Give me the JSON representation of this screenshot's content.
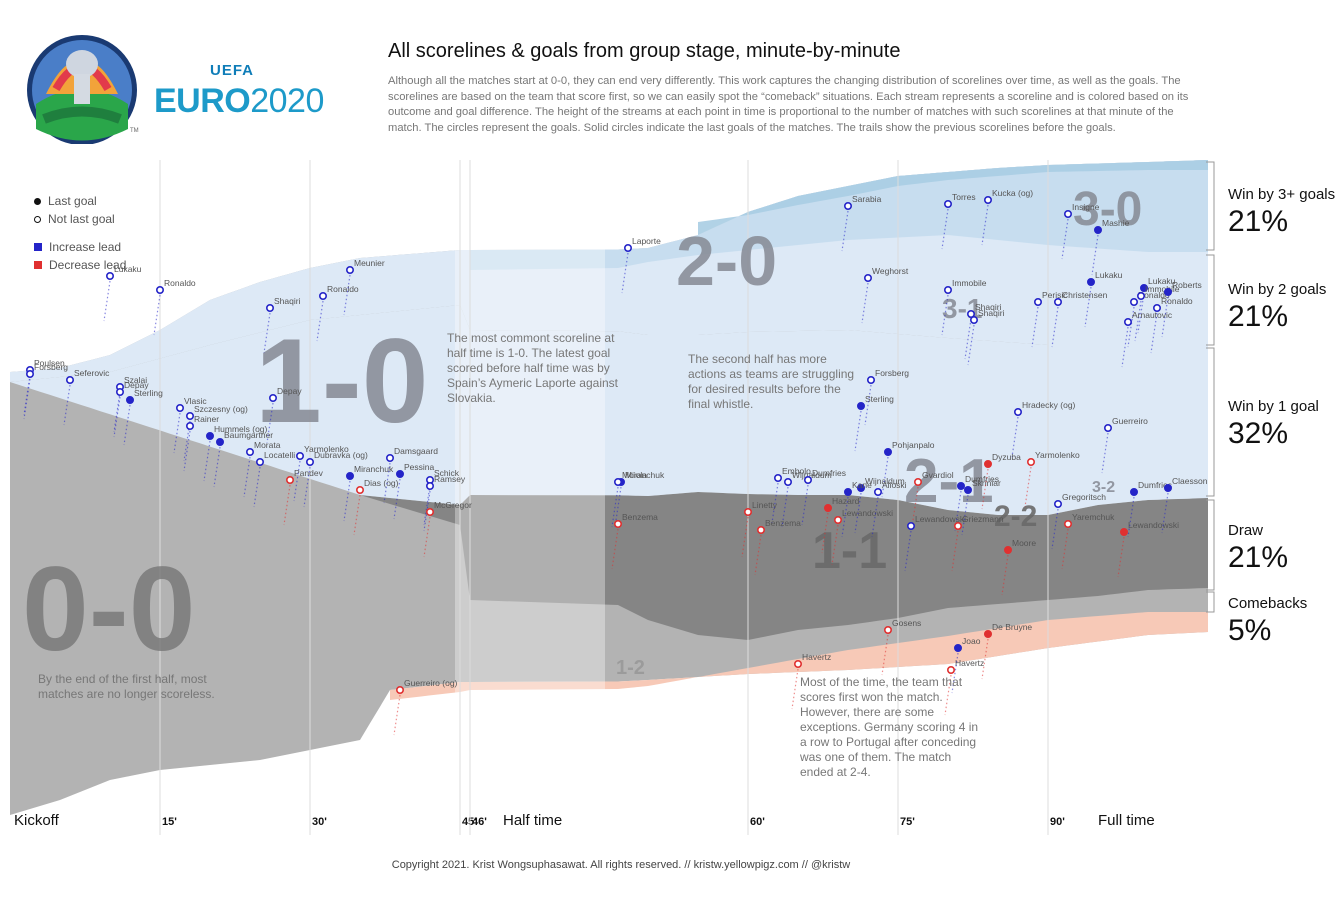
{
  "title": "All scorelines & goals from group stage, minute-by-minute",
  "description": "Although all the matches start at 0-0, they can end very differently. This work captures the changing distribution of scorelines over time, as well as the goals. The scorelines are based on the team that score first, so we can easily spot the “comeback” situations. Each stream represents a scoreline and is colored based on its outcome and goal difference. The height of the streams at each point in time is proportional to the number of matches with such scorelines at that minute of the match. The circles represent the goals. Solid circles indicate the last goals of the matches. The trails show the previous scorelines before the goals.",
  "logo": {
    "top": "UEFA",
    "name_a": "EURO",
    "name_b": "2020",
    "tm": "TM"
  },
  "legend": {
    "last_goal": "Last goal",
    "not_last_goal": "Not last goal",
    "increase_lead": "Increase lead",
    "decrease_lead": "Decrease lead"
  },
  "colors": {
    "increase": "#2424c8",
    "decrease": "#e03030",
    "draw_dark": "#7c7c7c",
    "zero": "#b3b3b3",
    "win1": "#dde9f6",
    "win2": "#c4dcee",
    "win3": "#a8cde3",
    "comeback": "#f7c9b7"
  },
  "annotations": {
    "first_half": "By the end of the first half, most matches are no longer scoreless.",
    "half_time": "The most commont scoreline at half time is 1-0. The latest goal scored before half time was by Spain’s Aymeric Laporte against Slovakia.",
    "second_half": "The second half has more actions as teams are struggling for desired results before the final whistle.",
    "comeback": "Most of the time, the team that scores first won the match. However, there are some exceptions. Germany scoring 4 in a row to Portugal after conceding was one of them. The match ended at 2-4."
  },
  "categories": [
    {
      "label": "Win by 3+ goals",
      "pct": "21%"
    },
    {
      "label": "Win by 2 goals",
      "pct": "21%"
    },
    {
      "label": "Win by 1 goal",
      "pct": "32%"
    },
    {
      "label": "Draw",
      "pct": "21%"
    },
    {
      "label": "Comebacks",
      "pct": "5%"
    }
  ],
  "axis": {
    "kickoff": "Kickoff",
    "half_time": "Half time",
    "full_time": "Full time"
  },
  "footer": "Copyright 2021. Krist Wongsuphasawat. All rights reserved.  // kristw.yellowpigz.com // @kristw",
  "chart_data": {
    "type": "area",
    "title": "All scorelines & goals from group stage, minute-by-minute",
    "x_label": "",
    "y_label": "",
    "x_ticks": [
      "15'",
      "30'",
      "45'",
      "46'",
      "60'",
      "75'",
      "90'"
    ],
    "scoreline_labels": [
      "0-0",
      "1-0",
      "2-0",
      "3-0",
      "1-1",
      "2-1",
      "3-1",
      "2-2",
      "3-2",
      "1-2"
    ],
    "outcome_shares": [
      {
        "name": "Win by 3+ goals",
        "value": 21
      },
      {
        "name": "Win by 2 goals",
        "value": 21
      },
      {
        "name": "Win by 1 goal",
        "value": 32
      },
      {
        "name": "Draw",
        "value": 21
      },
      {
        "name": "Comebacks",
        "value": 5
      }
    ],
    "goals": [
      {
        "player": "Poulsen",
        "minute": 2,
        "type": "increase",
        "last": false
      },
      {
        "player": "Forsberg",
        "minute": 2,
        "type": "increase",
        "last": false
      },
      {
        "player": "Seferovic",
        "minute": 6,
        "type": "increase",
        "last": false
      },
      {
        "player": "Lukaku",
        "minute": 10,
        "type": "increase",
        "last": false
      },
      {
        "player": "Szalai",
        "minute": 11,
        "type": "increase",
        "last": false
      },
      {
        "player": "Depay",
        "minute": 11,
        "type": "increase",
        "last": false
      },
      {
        "player": "Sterling",
        "minute": 12,
        "type": "increase",
        "last": true
      },
      {
        "player": "Ronaldo",
        "minute": 15,
        "type": "increase",
        "last": false
      },
      {
        "player": "Vlasic",
        "minute": 17,
        "type": "increase",
        "last": false
      },
      {
        "player": "Szczesny (og)",
        "minute": 18,
        "type": "increase",
        "last": false
      },
      {
        "player": "Rainer",
        "minute": 18,
        "type": "increase",
        "last": false
      },
      {
        "player": "Hummels (og)",
        "minute": 20,
        "type": "increase",
        "last": true
      },
      {
        "player": "Baumgartner",
        "minute": 21,
        "type": "increase",
        "last": true
      },
      {
        "player": "Morata",
        "minute": 24,
        "type": "increase",
        "last": false
      },
      {
        "player": "Locatelli",
        "minute": 25,
        "type": "increase",
        "last": false
      },
      {
        "player": "Depay",
        "minute": 26,
        "type": "increase",
        "last": false
      },
      {
        "player": "Pandev",
        "minute": 28,
        "type": "decrease",
        "last": false
      },
      {
        "player": "Yarmolenko",
        "minute": 29,
        "type": "increase",
        "last": false
      },
      {
        "player": "Dubravka (og)",
        "minute": 30,
        "type": "increase",
        "last": false
      },
      {
        "player": "Ronaldo",
        "minute": 31,
        "type": "increase",
        "last": false
      },
      {
        "player": "Shaqiri",
        "minute": 26,
        "type": "increase",
        "last": false
      },
      {
        "player": "Meunier",
        "minute": 34,
        "type": "increase",
        "last": false
      },
      {
        "player": "Miranchuk",
        "minute": 34,
        "type": "increase",
        "last": true
      },
      {
        "player": "Dias (og)",
        "minute": 35,
        "type": "decrease",
        "last": false
      },
      {
        "player": "Damsgaard",
        "minute": 38,
        "type": "increase",
        "last": false
      },
      {
        "player": "Guerreiro (og)",
        "minute": 39,
        "type": "decrease",
        "last": false
      },
      {
        "player": "Pessina",
        "minute": 39,
        "type": "increase",
        "last": true
      },
      {
        "player": "Schick",
        "minute": 42,
        "type": "increase",
        "last": false
      },
      {
        "player": "Ramsey",
        "minute": 42,
        "type": "increase",
        "last": false
      },
      {
        "player": "McGregor",
        "minute": 42,
        "type": "decrease",
        "last": false
      },
      {
        "player": "Laporte",
        "minute": 48,
        "type": "increase",
        "last": false
      },
      {
        "player": "Miranchuk",
        "minute": 47,
        "type": "increase",
        "last": true
      },
      {
        "player": "Moiola",
        "minute": 47,
        "type": "increase",
        "last": false
      },
      {
        "player": "Benzema",
        "minute": 47,
        "type": "decrease",
        "last": false
      },
      {
        "player": "Linetty",
        "minute": 60,
        "type": "decrease",
        "last": false
      },
      {
        "player": "Benzema",
        "minute": 61,
        "type": "decrease",
        "last": false
      },
      {
        "player": "Embolo",
        "minute": 63,
        "type": "increase",
        "last": false
      },
      {
        "player": "Wijnaldum",
        "minute": 64,
        "type": "increase",
        "last": false
      },
      {
        "player": "Dumfries",
        "minute": 66,
        "type": "increase",
        "last": false
      },
      {
        "player": "Havertz",
        "minute": 65,
        "type": "decrease",
        "last": false
      },
      {
        "player": "Hazard",
        "minute": 68,
        "type": "decrease",
        "last": true
      },
      {
        "player": "Lewandowski",
        "minute": 69,
        "type": "decrease",
        "last": false
      },
      {
        "player": "Sarabia",
        "minute": 70,
        "type": "increase",
        "last": false
      },
      {
        "player": "Wijnaldum",
        "minute": 71,
        "type": "increase",
        "last": true
      },
      {
        "player": "Kane",
        "minute": 70,
        "type": "increase",
        "last": true
      },
      {
        "player": "Sterling",
        "minute": 71,
        "type": "increase",
        "last": true
      },
      {
        "player": "Weghorst",
        "minute": 72,
        "type": "increase",
        "last": false
      },
      {
        "player": "Forsberg",
        "minute": 72,
        "type": "increase",
        "last": false
      },
      {
        "player": "Pohjanpalo",
        "minute": 74,
        "type": "increase",
        "last": true
      },
      {
        "player": "Alioski",
        "minute": 73,
        "type": "increase",
        "last": false
      },
      {
        "player": "Gosens",
        "minute": 74,
        "type": "decrease",
        "last": false
      },
      {
        "player": "Gvardiol",
        "minute": 77,
        "type": "decrease",
        "last": false
      },
      {
        "player": "Lewandowski",
        "minute": 76,
        "type": "increase",
        "last": false
      },
      {
        "player": "Torres",
        "minute": 80,
        "type": "increase",
        "last": false
      },
      {
        "player": "Immobile",
        "minute": 80,
        "type": "increase",
        "last": false
      },
      {
        "player": "Dumfries",
        "minute": 81,
        "type": "increase",
        "last": true
      },
      {
        "player": "Shaqiri",
        "minute": 82,
        "type": "increase",
        "last": false
      },
      {
        "player": "Kucka (og)",
        "minute": 84,
        "type": "increase",
        "last": false
      },
      {
        "player": "Havertz",
        "minute": 80,
        "type": "decrease",
        "last": false
      },
      {
        "player": "Griezmann",
        "minute": 81,
        "type": "decrease",
        "last": false
      },
      {
        "player": "Joao",
        "minute": 81,
        "type": "increase",
        "last": true
      },
      {
        "player": "Shaqiri",
        "minute": 82,
        "type": "increase",
        "last": false
      },
      {
        "player": "Skriniar",
        "minute": 82,
        "type": "increase",
        "last": true
      },
      {
        "player": "Dyzuba",
        "minute": 84,
        "type": "decrease",
        "last": true
      },
      {
        "player": "De Bruyne",
        "minute": 84,
        "type": "decrease",
        "last": true
      },
      {
        "player": "Moore",
        "minute": 86,
        "type": "decrease",
        "last": true
      },
      {
        "player": "Hradecky (og)",
        "minute": 87,
        "type": "increase",
        "last": false
      },
      {
        "player": "Yarmolenko",
        "minute": 88,
        "type": "decrease",
        "last": false
      },
      {
        "player": "Perisic",
        "minute": 89,
        "type": "increase",
        "last": false
      },
      {
        "player": "Christensen",
        "minute": 91,
        "type": "increase",
        "last": false
      },
      {
        "player": "Insigne",
        "minute": 92,
        "type": "increase",
        "last": false
      },
      {
        "player": "Gregoritsch",
        "minute": 91,
        "type": "increase",
        "last": false
      },
      {
        "player": "Yaremchuk",
        "minute": 92,
        "type": "decrease",
        "last": false
      },
      {
        "player": "Lukaku",
        "minute": 94,
        "type": "increase",
        "last": true
      },
      {
        "player": "Mashie",
        "minute": 95,
        "type": "increase",
        "last": true
      },
      {
        "player": "Guerreiro",
        "minute": 96,
        "type": "increase",
        "last": false
      },
      {
        "player": "Lewandowski",
        "minute": 97,
        "type": "decrease",
        "last": true
      },
      {
        "player": "Dumfries",
        "minute": 98,
        "type": "increase",
        "last": true
      },
      {
        "player": "Ronaldo",
        "minute": 98,
        "type": "increase",
        "last": false
      },
      {
        "player": "Lukaku",
        "minute": 99,
        "type": "increase",
        "last": true
      },
      {
        "player": "Immobile",
        "minute": 99,
        "type": "increase",
        "last": false
      },
      {
        "player": "Arnautovic",
        "minute": 98,
        "type": "increase",
        "last": false
      },
      {
        "player": "Ronaldo",
        "minute": 100,
        "type": "increase",
        "last": false
      },
      {
        "player": "Roberts",
        "minute": 102,
        "type": "increase",
        "last": true
      },
      {
        "player": "Claesson",
        "minute": 102,
        "type": "increase",
        "last": true
      }
    ]
  }
}
